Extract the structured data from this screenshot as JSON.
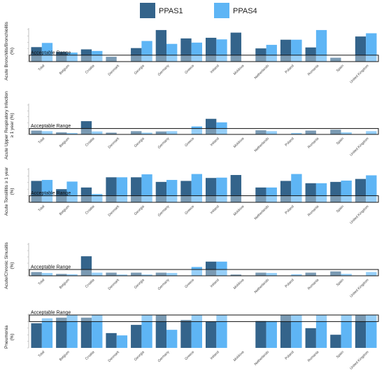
{
  "chart_data": {
    "type": "bar",
    "legend": {
      "placement": "top-center",
      "series_names": [
        "PPAS1",
        "PPAS4"
      ],
      "colors": [
        "#34648b",
        "#5eb5f5"
      ]
    },
    "categories": [
      "Total",
      "Belgium",
      "Croatia",
      "Denmark",
      "Georgia",
      "Germany",
      "Greece",
      "Ireland",
      "Moldova",
      "Netherlands",
      "Poland",
      "Romania",
      "Spain",
      "United Kingdom"
    ],
    "range_label": "Acceptable Range",
    "panels": [
      {
        "ylabel": "Acute Bronchitis/Bronchiolitis (%)",
        "ylim": [
          0,
          1
        ],
        "acceptable_range": [
          0,
          0.2
        ],
        "series": [
          {
            "name": "PPAS1",
            "values": [
              0.45,
              0.3,
              0.38,
              0.15,
              0.42,
              0.98,
              0.72,
              0.74,
              0.9,
              0.41,
              0.68,
              0.44,
              0.12,
              0.78
            ]
          },
          {
            "name": "PPAS4",
            "values": [
              0.58,
              0.28,
              0.33,
              0.0,
              0.64,
              0.55,
              0.59,
              0.69,
              0.0,
              0.52,
              0.68,
              0.98,
              0.0,
              0.88
            ]
          }
        ]
      },
      {
        "ylabel": "Acute Upper Respiratory Infection ≥ 1 year (%)",
        "ylim": [
          0,
          1
        ],
        "acceptable_range": [
          0,
          0.2
        ],
        "series": [
          {
            "name": "PPAS1",
            "values": [
              0.13,
              0.07,
              0.45,
              0.06,
              0.11,
              0.1,
              0.0,
              0.53,
              0.0,
              0.14,
              0.0,
              0.13,
              0.16,
              0.0
            ]
          },
          {
            "name": "PPAS4",
            "values": [
              0.11,
              0.05,
              0.1,
              0.0,
              0.06,
              0.11,
              0.27,
              0.41,
              0.0,
              0.11,
              0.05,
              0.0,
              0.07,
              0.11
            ]
          }
        ]
      },
      {
        "ylabel": "Acute Tonsillitis ≥ 1 year (%)",
        "ylim": [
          0,
          1
        ],
        "acceptable_range": [
          0,
          0.2
        ],
        "series": [
          {
            "name": "PPAS1",
            "values": [
              0.65,
              0.4,
              0.45,
              0.76,
              0.76,
              0.62,
              0.65,
              0.74,
              0.83,
              0.45,
              0.65,
              0.58,
              0.62,
              0.71
            ]
          },
          {
            "name": "PPAS4",
            "values": [
              0.68,
              0.63,
              0.25,
              0.76,
              0.85,
              0.68,
              0.86,
              0.75,
              0.0,
              0.45,
              0.86,
              0.58,
              0.66,
              0.82
            ]
          }
        ]
      },
      {
        "ylabel": "Acute/Chronic Sinusitis (%)",
        "ylim": [
          0,
          1
        ],
        "acceptable_range": [
          0,
          0.2
        ],
        "series": [
          {
            "name": "PPAS1",
            "values": [
              0.12,
              0.06,
              0.62,
              0.1,
              0.1,
              0.1,
              0.0,
              0.45,
              0.04,
              0.1,
              0.0,
              0.1,
              0.14,
              0.0
            ]
          },
          {
            "name": "PPAS4",
            "values": [
              0.09,
              0.05,
              0.1,
              0.04,
              0.04,
              0.09,
              0.28,
              0.45,
              0.0,
              0.09,
              0.05,
              0.0,
              0.06,
              0.12
            ]
          }
        ]
      },
      {
        "ylabel": "Pneumonia (%)",
        "ylim": [
          0,
          1
        ],
        "acceptable_range": [
          0.8,
          1
        ],
        "series": [
          {
            "name": "PPAS1",
            "values": [
              0.75,
              0.92,
              0.92,
              0.45,
              0.7,
              1.0,
              0.85,
              0.8,
              0.0,
              0.82,
              1.0,
              0.6,
              0.4,
              1.0
            ]
          },
          {
            "name": "PPAS4",
            "values": [
              0.9,
              1.0,
              1.0,
              0.38,
              1.0,
              0.55,
              1.0,
              1.0,
              0.0,
              0.82,
              1.0,
              1.0,
              1.0,
              1.0
            ]
          }
        ]
      }
    ]
  }
}
